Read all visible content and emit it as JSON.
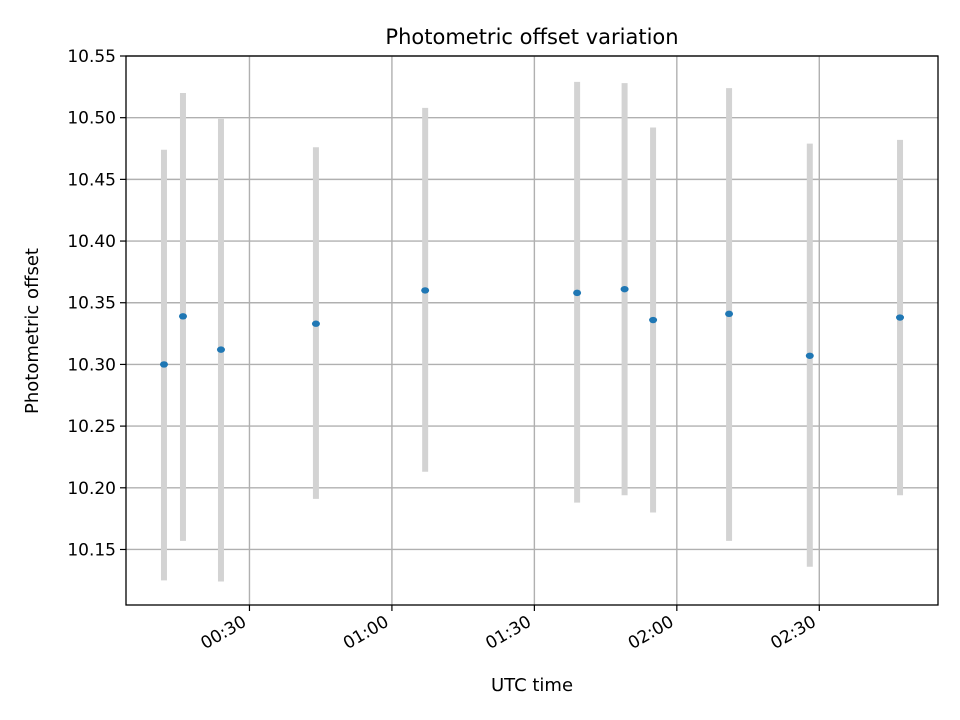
{
  "chart_data": {
    "type": "scatter",
    "title": "Photometric offset variation",
    "xlabel": "UTC time",
    "ylabel": "Photometric offset",
    "xlim": [
      "00:04",
      "02:55"
    ],
    "ylim": [
      10.105,
      10.55
    ],
    "grid": true,
    "x_ticks": [
      "00:30",
      "01:00",
      "01:30",
      "02:00",
      "02:30"
    ],
    "y_ticks": [
      "10.15",
      "10.20",
      "10.25",
      "10.30",
      "10.35",
      "10.40",
      "10.45",
      "10.50",
      "10.55"
    ],
    "series": [
      {
        "color": "#1f77b4",
        "error_color": "#d3d3d3",
        "points": [
          {
            "x": "00:12",
            "y": 10.3,
            "ylow": 10.125,
            "yhigh": 10.474
          },
          {
            "x": "00:16",
            "y": 10.339,
            "ylow": 10.157,
            "yhigh": 10.52
          },
          {
            "x": "00:24",
            "y": 10.312,
            "ylow": 10.124,
            "yhigh": 10.499
          },
          {
            "x": "00:44",
            "y": 10.333,
            "ylow": 10.191,
            "yhigh": 10.476
          },
          {
            "x": "01:07",
            "y": 10.36,
            "ylow": 10.213,
            "yhigh": 10.508
          },
          {
            "x": "01:39",
            "y": 10.358,
            "ylow": 10.188,
            "yhigh": 10.529
          },
          {
            "x": "01:49",
            "y": 10.361,
            "ylow": 10.194,
            "yhigh": 10.528
          },
          {
            "x": "01:55",
            "y": 10.336,
            "ylow": 10.18,
            "yhigh": 10.492
          },
          {
            "x": "02:11",
            "y": 10.341,
            "ylow": 10.157,
            "yhigh": 10.524
          },
          {
            "x": "02:28",
            "y": 10.307,
            "ylow": 10.136,
            "yhigh": 10.479
          },
          {
            "x": "02:47",
            "y": 10.338,
            "ylow": 10.194,
            "yhigh": 10.482
          }
        ]
      }
    ]
  }
}
